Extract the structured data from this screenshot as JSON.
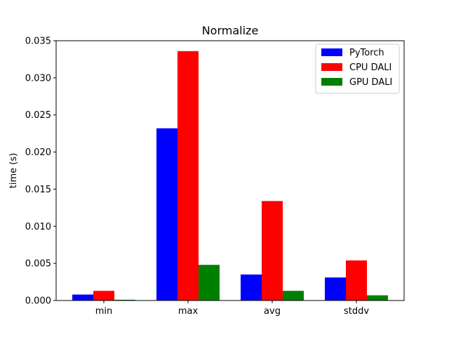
{
  "chart_data": {
    "type": "bar",
    "title": "Normalize",
    "xlabel": "",
    "ylabel": "time (s)",
    "categories": [
      "min",
      "max",
      "avg",
      "stddv"
    ],
    "series": [
      {
        "name": "PyTorch",
        "color": "#0000ff",
        "values": [
          0.0008,
          0.0232,
          0.0035,
          0.0031
        ]
      },
      {
        "name": "CPU DALI",
        "color": "#ff0000",
        "values": [
          0.0013,
          0.0336,
          0.0134,
          0.0054
        ]
      },
      {
        "name": "GPU DALI",
        "color": "#008000",
        "values": [
          0.0001,
          0.0048,
          0.0013,
          0.0007
        ]
      }
    ],
    "ylim": [
      0,
      0.035
    ],
    "yticks": [
      "0.000",
      "0.005",
      "0.010",
      "0.015",
      "0.020",
      "0.025",
      "0.030",
      "0.035"
    ],
    "grid": false,
    "legend_position": "top-right"
  }
}
